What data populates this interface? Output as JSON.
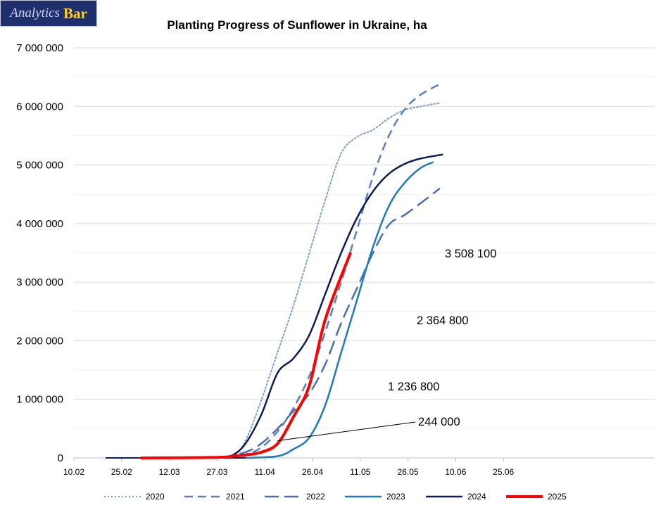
{
  "logo": {
    "part1": "Analytics",
    "part2": "Bar"
  },
  "chart_data": {
    "type": "line",
    "title": "Planting Progress of Sunflower in Ukraine, ha",
    "xlabel": "",
    "ylabel": "",
    "xaxis": {
      "ticks": [
        "10.02",
        "25.02",
        "12.03",
        "27.03",
        "11.04",
        "26.04",
        "11.05",
        "26.05",
        "10.06",
        "25.06"
      ],
      "range": [
        "10.02",
        "25.06"
      ]
    },
    "yaxis": {
      "ticks": [
        "0",
        "1 000 000",
        "2 000 000",
        "3 000 000",
        "4 000 000",
        "5 000 000",
        "6 000 000",
        "7 000 000"
      ],
      "range": [
        0,
        7000000
      ]
    },
    "grid": {
      "horizontal": true,
      "vertical": false
    },
    "legend_position": "bottom",
    "series": [
      {
        "name": "2020",
        "color": "#7f9fcf",
        "style": "dotted",
        "width": 2,
        "points": [
          [
            "01.04",
            0
          ],
          [
            "05.04",
            300000
          ],
          [
            "10.04",
            1000000
          ],
          [
            "15.04",
            1800000
          ],
          [
            "20.04",
            2600000
          ],
          [
            "25.04",
            3500000
          ],
          [
            "30.04",
            4400000
          ],
          [
            "05.05",
            5200000
          ],
          [
            "10.05",
            5480000
          ],
          [
            "15.05",
            5600000
          ],
          [
            "20.05",
            5800000
          ],
          [
            "25.05",
            5940000
          ],
          [
            "30.05",
            6000000
          ],
          [
            "05.06",
            6060000
          ]
        ]
      },
      {
        "name": "2021",
        "color": "#5b7fc0",
        "style": "dashed",
        "width": 2.5,
        "points": [
          [
            "30.03",
            0
          ],
          [
            "05.04",
            60000
          ],
          [
            "10.04",
            180000
          ],
          [
            "15.04",
            450000
          ],
          [
            "20.04",
            850000
          ],
          [
            "25.04",
            1400000
          ],
          [
            "30.04",
            2150000
          ],
          [
            "05.05",
            3000000
          ],
          [
            "10.05",
            3900000
          ],
          [
            "15.05",
            4800000
          ],
          [
            "20.05",
            5500000
          ],
          [
            "25.05",
            5950000
          ],
          [
            "30.05",
            6200000
          ],
          [
            "05.06",
            6380000
          ]
        ]
      },
      {
        "name": "2022",
        "color": "#4a6fb0",
        "style": "longdash",
        "width": 2.5,
        "points": [
          [
            "28.03",
            0
          ],
          [
            "05.04",
            100000
          ],
          [
            "10.04",
            250000
          ],
          [
            "15.04",
            500000
          ],
          [
            "20.04",
            800000
          ],
          [
            "25.04",
            1100000
          ],
          [
            "30.04",
            1600000
          ],
          [
            "05.05",
            2300000
          ],
          [
            "10.05",
            2900000
          ],
          [
            "15.05",
            3500000
          ],
          [
            "20.05",
            3980000
          ],
          [
            "25.05",
            4150000
          ],
          [
            "30.05",
            4350000
          ],
          [
            "05.06",
            4600000
          ]
        ]
      },
      {
        "name": "2023",
        "color": "#1f7ac0",
        "style": "solid",
        "width": 2.5,
        "points": [
          [
            "05.04",
            0
          ],
          [
            "15.04",
            30000
          ],
          [
            "20.04",
            150000
          ],
          [
            "25.04",
            350000
          ],
          [
            "30.04",
            900000
          ],
          [
            "05.05",
            1800000
          ],
          [
            "10.05",
            2700000
          ],
          [
            "15.05",
            3600000
          ],
          [
            "20.05",
            4300000
          ],
          [
            "25.05",
            4700000
          ],
          [
            "30.05",
            4950000
          ],
          [
            "03.06",
            5050000
          ]
        ]
      },
      {
        "name": "2024",
        "color": "#0d1d5c",
        "style": "solid",
        "width": 2.5,
        "points": [
          [
            "28.03",
            0
          ],
          [
            "01.04",
            50000
          ],
          [
            "05.04",
            250000
          ],
          [
            "10.04",
            750000
          ],
          [
            "15.04",
            1450000
          ],
          [
            "20.04",
            1700000
          ],
          [
            "25.04",
            2100000
          ],
          [
            "30.04",
            2800000
          ],
          [
            "05.05",
            3500000
          ],
          [
            "10.05",
            4100000
          ],
          [
            "15.05",
            4550000
          ],
          [
            "20.05",
            4850000
          ],
          [
            "25.05",
            5020000
          ],
          [
            "30.05",
            5110000
          ],
          [
            "06.06",
            5180000
          ]
        ]
      },
      {
        "name": "2025",
        "color": "#ff0000",
        "style": "solid",
        "width": 4,
        "points": [
          [
            "03.03",
            0
          ],
          [
            "27.03",
            10000
          ],
          [
            "01.04",
            30000
          ],
          [
            "05.04",
            50000
          ],
          [
            "10.04",
            100000
          ],
          [
            "15.04",
            244000
          ],
          [
            "20.04",
            700000
          ],
          [
            "25.04",
            1236800
          ],
          [
            "30.04",
            2364800
          ],
          [
            "08.05",
            3508100
          ]
        ]
      }
    ],
    "annotations": [
      {
        "text": "3 508 100",
        "at": [
          "08.05",
          3508100
        ]
      },
      {
        "text": "2 364 800",
        "at": [
          "30.04",
          2364800
        ]
      },
      {
        "text": "1 236 800",
        "at": [
          "25.04",
          1236800
        ]
      },
      {
        "text": "244 000",
        "at": [
          "15.04",
          244000
        ]
      }
    ]
  }
}
